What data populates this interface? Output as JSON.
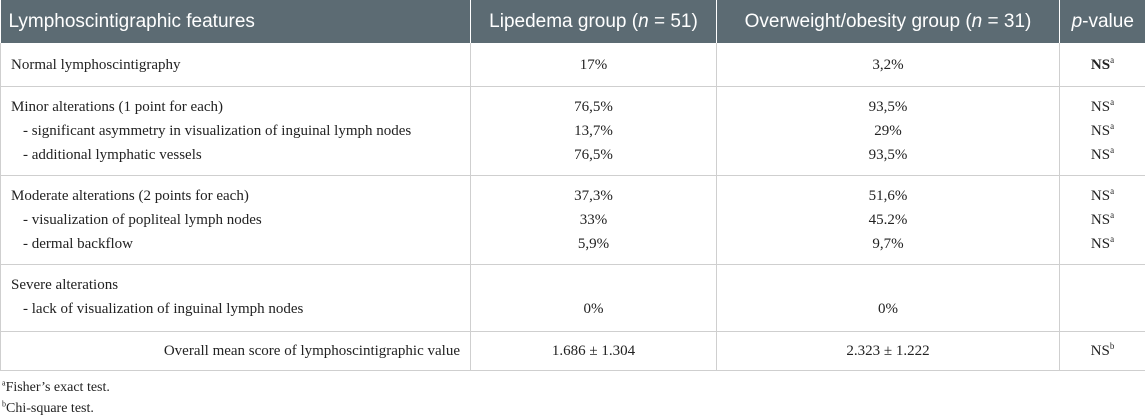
{
  "header": {
    "col1": "Lymphoscintigraphic features",
    "col2_prefix": "Lipedema group (",
    "col2_n": "n",
    "col2_suffix": " = 51)",
    "col3_prefix": "Overweight/obesity group (",
    "col3_n": "n",
    "col3_suffix": " = 31)",
    "col4_p": "p",
    "col4_suffix": "-value"
  },
  "rows": {
    "normal": {
      "label": "Normal lymphoscintigraphy",
      "lip": "17%",
      "ow": "3,2%",
      "p": "NS",
      "sup": "a"
    },
    "minor": {
      "label": "Minor alterations (1 point for each)",
      "lip": "76,5%",
      "ow": "93,5%",
      "p": "NS",
      "sup": "a"
    },
    "minor_asym": {
      "label": "- significant asymmetry in visualization of inguinal lymph nodes",
      "lip": "13,7%",
      "ow": "29%",
      "p": "NS",
      "sup": "a"
    },
    "minor_vessels": {
      "label": "- additional lymphatic vessels",
      "lip": "76,5%",
      "ow": "93,5%",
      "p": "NS",
      "sup": "a"
    },
    "moderate": {
      "label": "Moderate alterations (2 points for each)",
      "lip": "37,3%",
      "ow": "51,6%",
      "p": "NS",
      "sup": "a"
    },
    "moderate_popliteal": {
      "label": "- visualization of popliteal lymph nodes",
      "lip": "33%",
      "ow": "45.2%",
      "p": "NS",
      "sup": "a"
    },
    "moderate_backflow": {
      "label": "- dermal backflow",
      "lip": "5,9%",
      "ow": "9,7%",
      "p": "NS",
      "sup": "a"
    },
    "severe": {
      "label": "Severe alterations"
    },
    "severe_inguinal": {
      "label": "- lack of visualization of inguinal lymph nodes",
      "lip": "0%",
      "ow": "0%"
    },
    "overall": {
      "label": "Overall mean score of lymphoscintigraphic value",
      "lip": "1.686 ± 1.304",
      "ow": "2.323 ± 1.222",
      "p": "NS",
      "sup": "b"
    }
  },
  "footnotes": {
    "a_mark": "a",
    "a_text": "Fisher’s exact test.",
    "b_mark": "b",
    "b_text": "Chi-square test."
  }
}
